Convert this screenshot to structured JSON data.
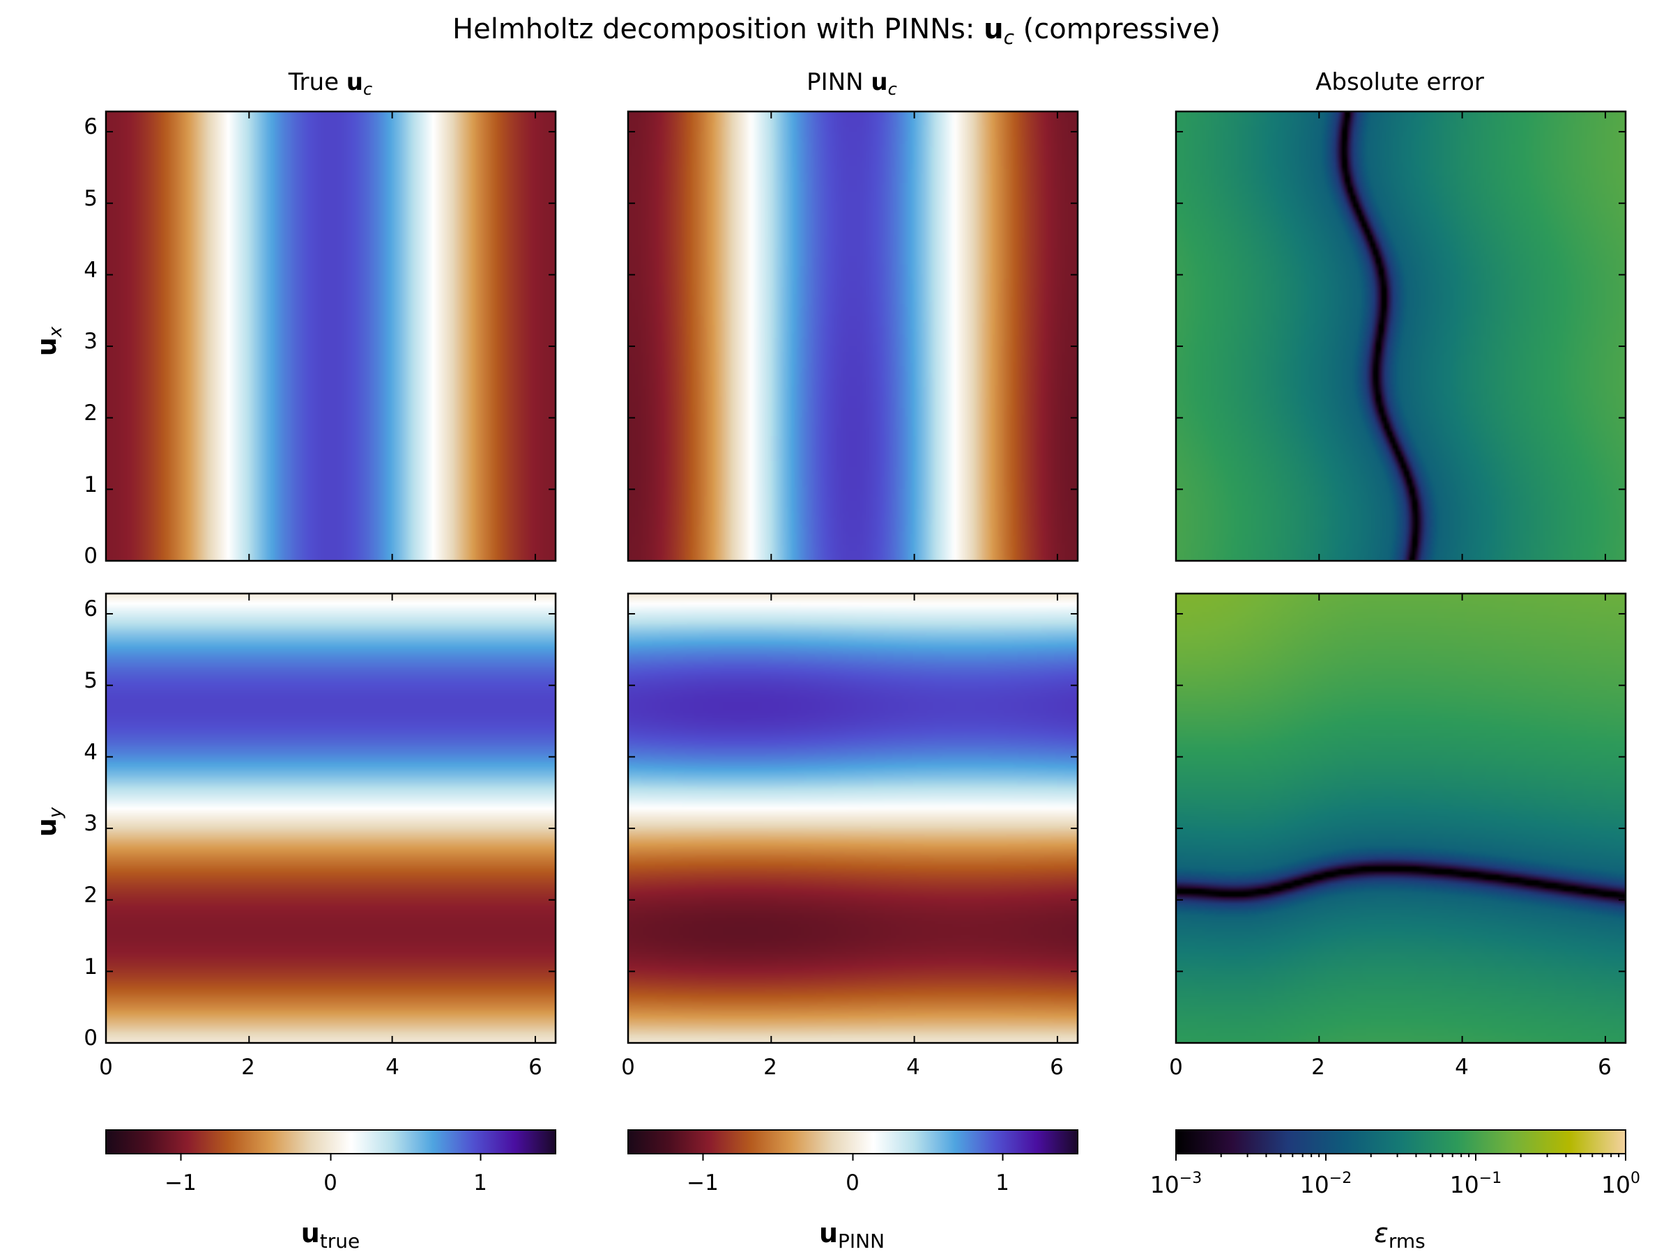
{
  "figure": {
    "suptitle": {
      "prefix": "Helmholtz decomposition with PINNs: ",
      "bold": "u",
      "sub": "c",
      "suffix": " (compressive)"
    }
  },
  "columns": [
    {
      "prefix": "True ",
      "bold": "u",
      "sub": "c"
    },
    {
      "prefix": "PINN ",
      "bold": "u",
      "sub": "c"
    },
    {
      "prefix": "Absolute error",
      "bold": "",
      "sub": ""
    }
  ],
  "rows": [
    {
      "bold": "u",
      "sub": "x"
    },
    {
      "bold": "u",
      "sub": "y"
    }
  ],
  "colorbars": [
    {
      "label_bold": "u",
      "label_sub": "true",
      "ticks": [
        "−1",
        "0",
        "1"
      ]
    },
    {
      "label_bold": "u",
      "label_sub": "PINN",
      "ticks": [
        "−1",
        "0",
        "1"
      ]
    },
    {
      "label_main": "ε",
      "label_sub": "rms",
      "ticks": [
        "10",
        "10",
        "10",
        "10"
      ],
      "tick_exps": [
        "−3",
        "−2",
        "−1",
        "0"
      ]
    }
  ],
  "axis_ticks": [
    "0",
    "1",
    "2",
    "3",
    "4",
    "5",
    "6"
  ],
  "x_tick_labels": [
    "0",
    "2",
    "4",
    "6"
  ],
  "chart_data": {
    "type": "heatmap",
    "domain": {
      "x": [
        0,
        6.283
      ],
      "y": [
        0,
        6.283
      ]
    },
    "panels": [
      {
        "row": "u_x",
        "column": "True u_c",
        "field": "-cos(x)",
        "colormap": "diverging",
        "vlim": [
          -1.5,
          1.5
        ]
      },
      {
        "row": "u_x",
        "column": "PINN u_c",
        "field": "-cos(x) (approx.)",
        "colormap": "diverging",
        "vlim": [
          -1.5,
          1.5
        ]
      },
      {
        "row": "u_x",
        "column": "Absolute error",
        "colormap": "batlow",
        "scale": "log",
        "vlim": [
          0.001,
          1
        ]
      },
      {
        "row": "u_y",
        "column": "True u_c",
        "field": "-sin(y)",
        "colormap": "diverging",
        "vlim": [
          -1.5,
          1.5
        ]
      },
      {
        "row": "u_y",
        "column": "PINN u_c",
        "field": "-sin(y) (approx.)",
        "colormap": "diverging",
        "vlim": [
          -1.5,
          1.5
        ]
      },
      {
        "row": "u_y",
        "column": "Absolute error",
        "colormap": "batlow",
        "scale": "log",
        "vlim": [
          0.001,
          1
        ]
      }
    ],
    "colors": {
      "diverging_stops": [
        "#1a0818",
        "#4a0d1f",
        "#8b1d2c",
        "#b55a1e",
        "#d99a4e",
        "#e8d7b8",
        "#ffffff",
        "#b8e0ec",
        "#4fa4e0",
        "#5050d0",
        "#4a0ea0",
        "#1a0828"
      ],
      "error_stops": [
        "#000000",
        "#2a0a3a",
        "#1f3a7a",
        "#0f5a7a",
        "#157a74",
        "#2d9a5a",
        "#74b23a",
        "#b4b800",
        "#f3d2a0"
      ]
    }
  }
}
